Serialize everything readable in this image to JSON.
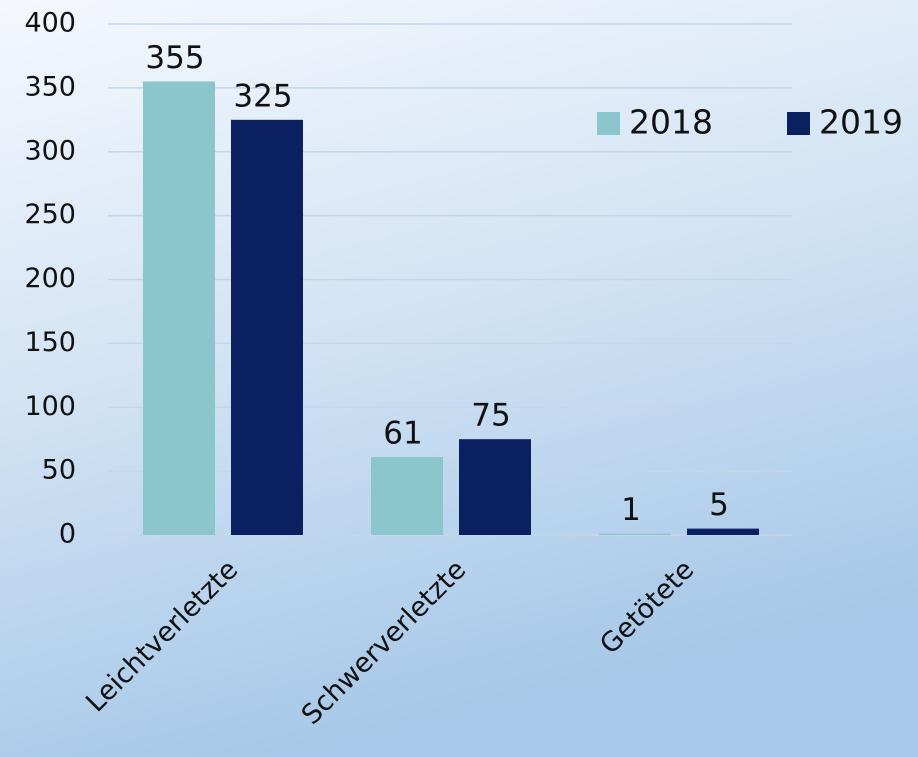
{
  "chart_data": {
    "type": "bar",
    "categories": [
      "Leichtverletzte",
      "Schwerverletzte",
      "Getötete"
    ],
    "series": [
      {
        "name": "2018",
        "color": "#8ac6cb",
        "values": [
          355,
          61,
          1
        ]
      },
      {
        "name": "2019",
        "color": "#0a2060",
        "values": [
          325,
          75,
          5
        ]
      }
    ],
    "ylim": [
      0,
      400
    ],
    "yticks": [
      0,
      50,
      100,
      150,
      200,
      250,
      300,
      350,
      400
    ],
    "grid": true,
    "legend": "top-right"
  }
}
